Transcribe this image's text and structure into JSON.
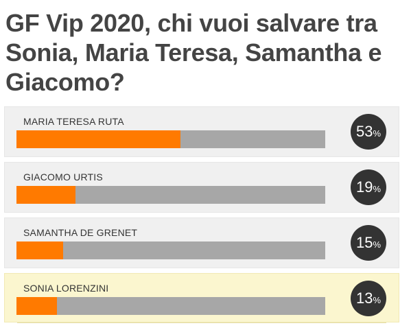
{
  "poll": {
    "title": "GF Vip 2020, chi vuoi salvare tra Sonia, Maria Teresa, Samantha e Giacomo?",
    "percent_sign": "%",
    "options": [
      {
        "name": "MARIA TERESA RUTA",
        "percent": "53",
        "fraction": 0.53,
        "highlighted": false
      },
      {
        "name": "GIACOMO URTIS",
        "percent": "19",
        "fraction": 0.19,
        "highlighted": false
      },
      {
        "name": "SAMANTHA DE GRENET",
        "percent": "15",
        "fraction": 0.15,
        "highlighted": false
      },
      {
        "name": "SONIA LORENZINI",
        "percent": "13",
        "fraction": 0.13,
        "highlighted": true
      }
    ]
  },
  "colors": {
    "bar_fill": "#ff7a00",
    "bar_track": "#a7a7a7",
    "row_background": "#f0f0f0",
    "highlight_background": "#fbf6cf",
    "percent_circle": "#333333",
    "title_text": "#444444"
  }
}
